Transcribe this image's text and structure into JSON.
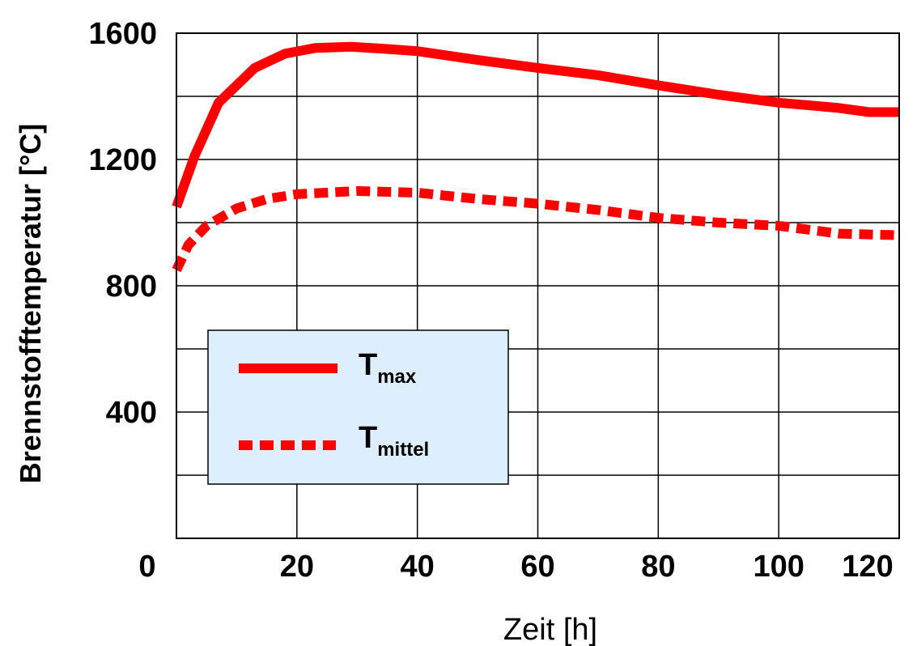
{
  "chart_data": {
    "type": "line",
    "title": "",
    "xlabel": "Zeit [h]",
    "ylabel": "Brennstofftemperatur [°C]",
    "xlim": [
      0,
      120
    ],
    "ylim": [
      0,
      1600
    ],
    "x_ticks": [
      0,
      20,
      40,
      60,
      80,
      100,
      120
    ],
    "x_tick_labels": [
      "0",
      "20",
      "40",
      "60",
      "80",
      "100",
      "120"
    ],
    "y_ticks": [
      400,
      800,
      1200,
      1600
    ],
    "y_tick_labels": [
      "400",
      "800",
      "1200",
      "1600"
    ],
    "grid": true,
    "grid_x_step": 20,
    "grid_y_step": 200,
    "legend_position": "lower-left",
    "legend_background": "#ddeeff",
    "series": [
      {
        "name": "T",
        "subscript": "max",
        "color": "#ff0000",
        "style": "solid",
        "x": [
          0,
          3,
          7,
          13,
          18,
          23,
          29,
          35,
          40,
          50,
          60,
          70,
          80,
          90,
          100,
          110,
          115,
          120
        ],
        "y": [
          1050,
          1210,
          1380,
          1490,
          1535,
          1553,
          1557,
          1550,
          1543,
          1515,
          1490,
          1467,
          1435,
          1405,
          1380,
          1363,
          1350,
          1350
        ]
      },
      {
        "name": "T",
        "subscript": "mittel",
        "color": "#ff0000",
        "style": "dotted",
        "x": [
          0,
          2,
          5,
          10,
          15,
          20,
          30,
          40,
          50,
          60,
          70,
          80,
          90,
          100,
          110,
          120
        ],
        "y": [
          850,
          930,
          990,
          1045,
          1075,
          1090,
          1100,
          1095,
          1075,
          1060,
          1040,
          1015,
          1000,
          990,
          965,
          960
        ]
      }
    ]
  }
}
